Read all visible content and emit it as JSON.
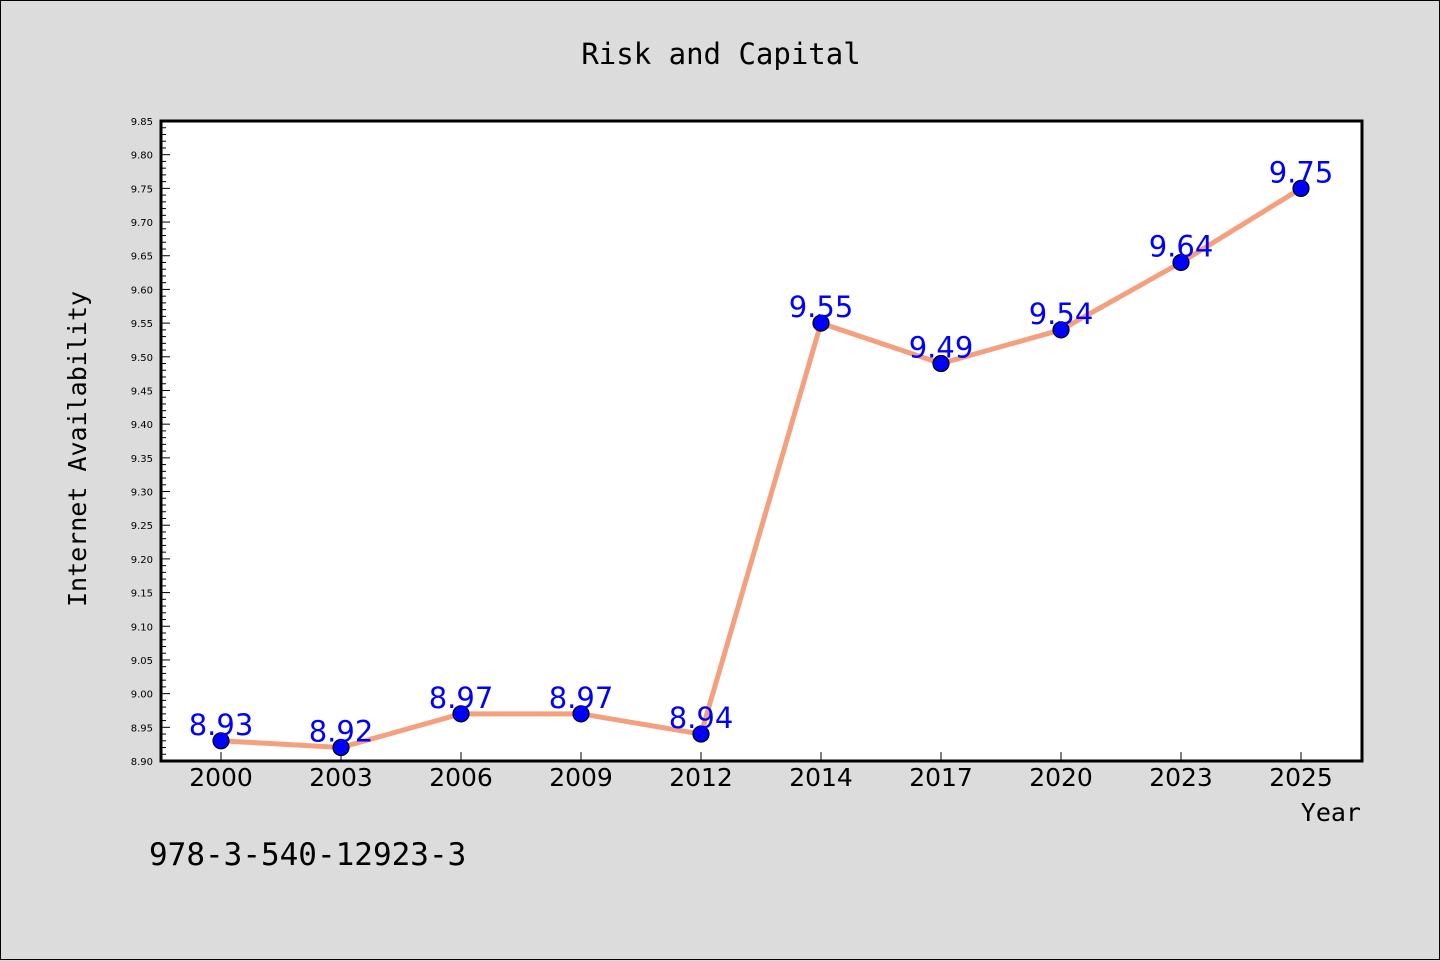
{
  "chart_data": {
    "type": "line",
    "title": "Risk and Capital",
    "xlabel": "Year",
    "ylabel": "Internet Availability",
    "categories": [
      "2000",
      "2003",
      "2006",
      "2009",
      "2012",
      "2014",
      "2017",
      "2020",
      "2023",
      "2025"
    ],
    "series": [
      {
        "values": [
          8.93,
          8.92,
          8.97,
          8.97,
          8.94,
          9.55,
          9.49,
          9.54,
          9.64,
          9.75
        ],
        "line_color": "#f4a07e",
        "marker_color": "#0000ff"
      }
    ],
    "data_labels": [
      "8.93",
      "8.92",
      "8.97",
      "8.97",
      "8.94",
      "9.55",
      "9.49",
      "9.54",
      "9.64",
      "9.75"
    ],
    "data_label_color": "#0000ff",
    "ylim": [
      8.9,
      9.85
    ],
    "yticks": [
      "8.90",
      "8.95",
      "9.00",
      "9.05",
      "9.10",
      "9.15",
      "9.20",
      "9.25",
      "9.30",
      "9.35",
      "9.40",
      "9.45",
      "9.50",
      "9.55",
      "9.60",
      "9.65",
      "9.70",
      "9.75",
      "9.80",
      "9.85"
    ],
    "grid": false,
    "legend": "none"
  },
  "footer_code": "978-3-540-12923-3",
  "colors": {
    "background": "#dcdcdc",
    "plot_background": "#ffffff"
  }
}
